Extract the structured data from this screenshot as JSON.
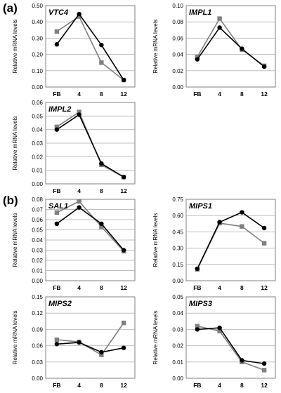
{
  "panel_labels": {
    "a": "(a)",
    "b": "(b)"
  },
  "styles": {
    "series_colors": [
      "#000000",
      "#7f7f7f"
    ],
    "series_markers": [
      "circle",
      "square"
    ],
    "gridline_color": "#bfbfbf"
  },
  "chart_data": [
    {
      "type": "line",
      "panel": "a",
      "title": "VTC4",
      "ylabel": "Relative mRNA levels",
      "categories": [
        "FB",
        "4",
        "8",
        "12"
      ],
      "ylim": [
        0,
        0.5
      ],
      "yticks": [
        "0.00",
        "0.10",
        "0.20",
        "0.30",
        "0.40",
        "0.50"
      ],
      "grid": true,
      "series": [
        {
          "values": [
            0.262,
            0.448,
            0.258,
            0.043
          ]
        },
        {
          "values": [
            0.341,
            0.433,
            0.15,
            0.043
          ]
        }
      ]
    },
    {
      "type": "line",
      "panel": "a",
      "title": "IMPL1",
      "ylabel": "Relative mRNA levels",
      "categories": [
        "FB",
        "4",
        "8",
        "12"
      ],
      "ylim": [
        0,
        0.1
      ],
      "yticks": [
        "0.00",
        "0.02",
        "0.04",
        "0.06",
        "0.08",
        "0.10"
      ],
      "grid": true,
      "series": [
        {
          "values": [
            0.034,
            0.073,
            0.047,
            0.025
          ]
        },
        {
          "values": [
            0.037,
            0.084,
            0.046,
            0.026
          ]
        }
      ]
    },
    {
      "type": "line",
      "panel": "a",
      "title": "IMPL2",
      "ylabel": "Relative mRNA levels",
      "categories": [
        "FB",
        "4",
        "8",
        "12"
      ],
      "ylim": [
        0,
        0.06
      ],
      "yticks": [
        "0.00",
        "0.01",
        "0.02",
        "0.03",
        "0.04",
        "0.05",
        "0.06"
      ],
      "grid": true,
      "series": [
        {
          "values": [
            0.04,
            0.051,
            0.015,
            0.005
          ]
        },
        {
          "values": [
            0.042,
            0.053,
            0.014,
            0.005
          ]
        }
      ]
    },
    {
      "type": "line",
      "panel": "b",
      "title": "SAL1",
      "ylabel": "Relative mRNA levels",
      "categories": [
        "FB",
        "4",
        "8",
        "12"
      ],
      "ylim": [
        0,
        0.08
      ],
      "yticks": [
        "0.00",
        "0.01",
        "0.02",
        "0.03",
        "0.04",
        "0.05",
        "0.06",
        "0.07",
        "0.08"
      ],
      "grid": true,
      "series": [
        {
          "values": [
            0.056,
            0.072,
            0.056,
            0.03
          ]
        },
        {
          "values": [
            0.067,
            0.078,
            0.053,
            0.029
          ]
        }
      ]
    },
    {
      "type": "line",
      "panel": "b",
      "title": "MIPS1",
      "ylabel": "Relative mRNA levels",
      "categories": [
        "FB",
        "4",
        "8",
        "12"
      ],
      "ylim": [
        0,
        0.75
      ],
      "yticks": [
        "0.00",
        "0.15",
        "0.30",
        "0.45",
        "0.60",
        "0.75"
      ],
      "grid": true,
      "series": [
        {
          "values": [
            0.11,
            0.54,
            0.63,
            0.485
          ]
        },
        {
          "values": [
            0.105,
            0.53,
            0.5,
            0.345
          ]
        }
      ]
    },
    {
      "type": "line",
      "panel": "b",
      "title": "MIPS2",
      "ylabel": "Relative mRNA levels",
      "categories": [
        "FB",
        "4",
        "8",
        "12"
      ],
      "ylim": [
        0,
        0.15
      ],
      "yticks": [
        "0.00",
        "0.03",
        "0.06",
        "0.09",
        "0.12",
        "0.15"
      ],
      "grid": true,
      "series": [
        {
          "values": [
            0.063,
            0.066,
            0.048,
            0.056
          ]
        },
        {
          "values": [
            0.071,
            0.067,
            0.043,
            0.102
          ]
        }
      ]
    },
    {
      "type": "line",
      "panel": "b",
      "title": "MIPS3",
      "ylabel": "Relative mRNA levels",
      "categories": [
        "FB",
        "4",
        "8",
        "12"
      ],
      "ylim": [
        0,
        0.05
      ],
      "yticks": [
        "0.00",
        "0.01",
        "0.02",
        "0.03",
        "0.04",
        "0.05"
      ],
      "grid": true,
      "series": [
        {
          "values": [
            0.03,
            0.031,
            0.011,
            0.009
          ]
        },
        {
          "values": [
            0.032,
            0.029,
            0.01,
            0.005
          ]
        }
      ]
    }
  ]
}
